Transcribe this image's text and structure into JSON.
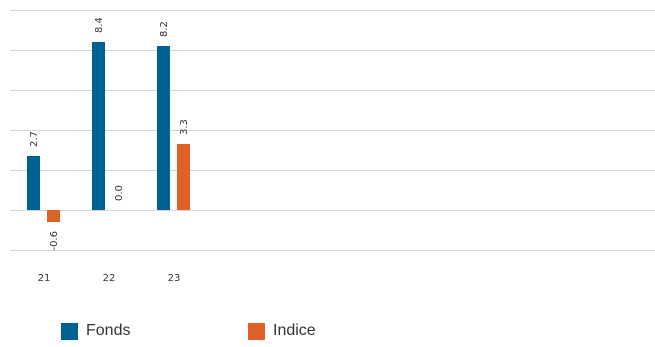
{
  "chart_data": {
    "type": "bar",
    "categories": [
      "21",
      "22",
      "23"
    ],
    "series": [
      {
        "name": "Fonds",
        "values": [
          2.7,
          8.4,
          8.2
        ],
        "labels": [
          "2.7",
          "8.4",
          "8.2"
        ],
        "color": "#006293"
      },
      {
        "name": "Indice",
        "values": [
          -0.6,
          0.0,
          3.3
        ],
        "labels": [
          "-0.6",
          "0.0",
          "3.3"
        ],
        "color": "#dc6229"
      }
    ],
    "ylim": [
      -2,
      10
    ],
    "grid": true,
    "legend_position": "bottom-left"
  }
}
